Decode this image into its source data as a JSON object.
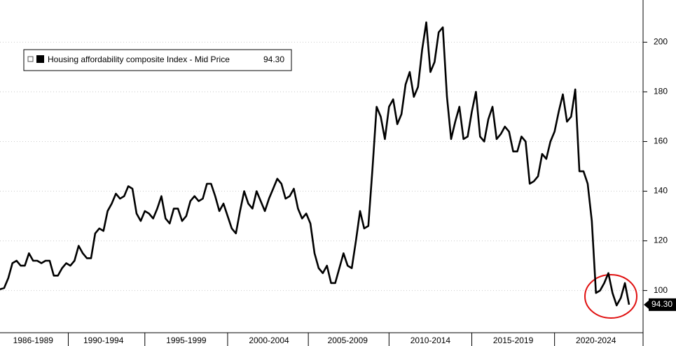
{
  "chart_data": {
    "type": "line",
    "categories": [
      null,
      null,
      null,
      null,
      null,
      null,
      null,
      null,
      "1986-1989",
      null,
      null,
      null,
      null,
      null,
      null,
      null,
      null,
      null,
      null,
      null,
      null,
      null,
      null,
      null,
      null,
      "1990-1994",
      null,
      null,
      null,
      null,
      null,
      null,
      null,
      null,
      null,
      null,
      null,
      null,
      null,
      null,
      null,
      null,
      null,
      null,
      null,
      "1995-1999",
      null,
      null,
      null,
      null,
      null,
      null,
      null,
      null,
      null,
      null,
      null,
      null,
      null,
      null,
      null,
      null,
      null,
      null,
      null,
      "2000-2004",
      null,
      null,
      null,
      null,
      null,
      null,
      null,
      null,
      null,
      null,
      null,
      null,
      null,
      null,
      null,
      null,
      null,
      null,
      "2005-2009",
      null,
      null,
      null,
      null,
      null,
      null,
      null,
      null,
      null,
      null,
      null,
      null,
      null,
      null,
      null,
      null,
      null,
      null,
      null,
      "2010-2014",
      null,
      null,
      null,
      null,
      null,
      null,
      null,
      null,
      null,
      null,
      null,
      null,
      null,
      null,
      null,
      null,
      null,
      null,
      null,
      "2015-2019",
      null,
      null,
      null,
      null,
      null,
      null,
      null,
      null,
      null,
      null,
      null,
      null,
      null,
      null,
      null,
      null,
      null,
      null,
      null,
      "2020-2024",
      null,
      null,
      null,
      null,
      null,
      null,
      null,
      null
    ],
    "series": [
      {
        "name": "Housing affordability composite Index - Mid Price",
        "color": "#000000",
        "values": [
          100.5,
          101,
          105,
          111,
          112,
          110,
          110,
          115,
          112,
          112,
          111,
          112,
          112,
          106,
          106,
          109,
          111,
          110,
          112,
          118,
          115,
          113,
          113,
          123,
          125,
          124,
          132,
          135,
          139,
          137,
          138,
          142,
          141,
          131,
          128,
          132,
          131,
          129,
          133,
          138,
          129,
          127,
          133,
          133,
          128,
          130,
          136,
          138,
          136,
          137,
          143,
          143,
          138,
          132,
          135,
          130,
          125,
          123,
          132,
          140,
          135,
          133,
          140,
          136,
          132,
          137,
          141,
          145,
          143,
          137,
          138,
          141,
          133,
          129,
          131,
          127,
          115,
          109,
          107,
          110,
          103,
          103,
          109,
          115,
          110,
          109,
          120,
          132,
          125,
          126,
          149,
          174,
          170,
          161,
          174,
          177,
          167,
          171,
          183,
          188,
          178,
          182,
          197,
          208,
          188,
          192,
          204,
          206,
          178,
          161,
          168,
          174,
          161,
          162,
          172,
          180,
          162,
          160,
          169,
          174,
          161,
          163,
          166,
          164,
          156,
          156,
          162,
          160,
          143,
          144,
          146,
          155,
          153,
          160,
          164,
          172,
          179,
          168,
          170,
          181,
          148,
          148,
          143,
          128,
          99,
          100,
          103,
          107,
          99,
          94,
          97,
          103,
          94.3
        ],
        "last_label": {
          "value": 94.3,
          "label": "94.30"
        }
      }
    ],
    "ylim": [
      83,
      217
    ],
    "yticks": [
      100,
      120,
      140,
      160,
      180,
      200
    ],
    "grid": true
  }
}
